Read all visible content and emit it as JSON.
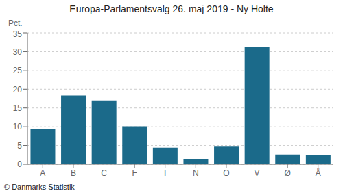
{
  "chart_data": {
    "type": "bar",
    "title": "Europa-Parlamentsvalg 26. maj 2019 - Ny Holte",
    "ylabel": "Pct.",
    "annotations": [
      "© Danmarks Statistik"
    ],
    "categories": [
      "A",
      "B",
      "C",
      "F",
      "I",
      "N",
      "O",
      "V",
      "Ø",
      "Å"
    ],
    "values": [
      9.3,
      18.3,
      17.0,
      10.1,
      4.4,
      1.4,
      4.7,
      31.2,
      2.6,
      2.4
    ],
    "color": "#1b6a8a",
    "ylim": [
      0,
      35
    ],
    "yticks": [
      0,
      5,
      10,
      15,
      20,
      25,
      30,
      35
    ],
    "grid": true
  }
}
